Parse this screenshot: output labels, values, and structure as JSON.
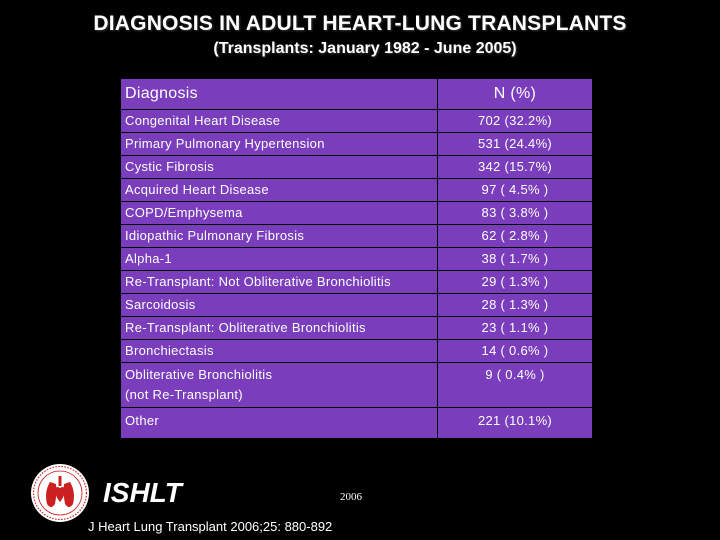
{
  "title": "DIAGNOSIS IN ADULT HEART-LUNG TRANSPLANTS",
  "subtitle": "(Transplants: January 1982 - June 2005)",
  "table": {
    "headers": [
      "Diagnosis",
      "N  (%)"
    ],
    "rows": [
      {
        "diagnosis": "Congenital Heart Disease",
        "n": "702 (32.2%)"
      },
      {
        "diagnosis": "Primary Pulmonary Hypertension",
        "n": "531 (24.4%)"
      },
      {
        "diagnosis": "Cystic Fibrosis",
        "n": "342 (15.7%)"
      },
      {
        "diagnosis": "Acquired Heart Disease",
        "n": "97 ( 4.5% )"
      },
      {
        "diagnosis": "COPD/Emphysema",
        "n": "83 ( 3.8% )"
      },
      {
        "diagnosis": "Idiopathic Pulmonary Fibrosis",
        "n": "62 ( 2.8% )"
      },
      {
        "diagnosis": "Alpha-1",
        "n": "38 ( 1.7% )"
      },
      {
        "diagnosis": "Re-Transplant: Not Obliterative Bronchiolitis",
        "n": "29 ( 1.3% )"
      },
      {
        "diagnosis": "Sarcoidosis",
        "n": "28 ( 1.3% )"
      },
      {
        "diagnosis": "Re-Transplant: Obliterative Bronchiolitis",
        "n": "23 ( 1.1% )"
      },
      {
        "diagnosis": "Bronchiectasis",
        "n": "14 ( 0.6% )"
      },
      {
        "diagnosis": "Obliterative Bronchiolitis",
        "diagnosis_line2": "(not Re-Transplant)",
        "n": "9 ( 0.4% )"
      },
      {
        "diagnosis": "Other",
        "n": "221 (10.1%)"
      }
    ]
  },
  "footer": {
    "brand": "ISHLT",
    "year": "2006",
    "citation": "J Heart Lung Transplant 2006;25: 880-892"
  },
  "colors": {
    "background": "#000000",
    "table_cell": "#7a3dbb",
    "text": "#ffffff",
    "logo_red": "#cc1f1f"
  },
  "icons": {
    "logo": "ishlt-heart-lungs-logo"
  }
}
